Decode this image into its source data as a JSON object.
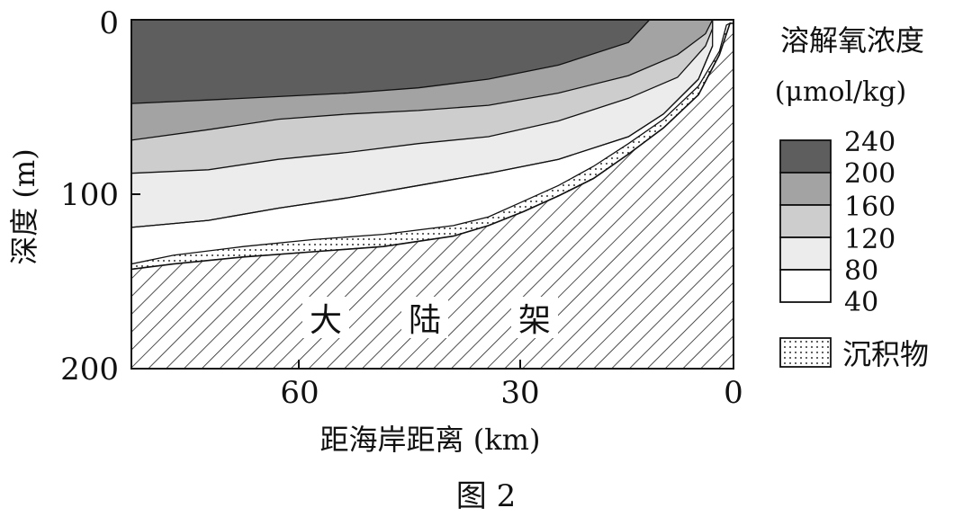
{
  "chart_data": {
    "type": "area",
    "title": "",
    "figure_label": "图 2",
    "xlabel": "距海岸距离 (km)",
    "ylabel": "深度 (m)",
    "xlim": [
      86,
      0
    ],
    "ylim": [
      0,
      200
    ],
    "x_ticks": [
      "60",
      "30",
      "0"
    ],
    "x_tick_values": [
      60,
      30,
      0
    ],
    "y_ticks": [
      "0",
      "100",
      "200"
    ],
    "y_tick_values": [
      0,
      100,
      200
    ],
    "shelf_label": [
      "大",
      "陆",
      "架"
    ],
    "legend": {
      "title": "溶解氧浓度",
      "unit": "(μmol/kg)",
      "values": [
        "240",
        "200",
        "160",
        "120",
        "80",
        "40"
      ],
      "sediment_label": "沉积物"
    },
    "colors": {
      "c240": "#5e5e5e",
      "c200": "#a3a3a3",
      "c160": "#cdcdcd",
      "c120": "#ececec",
      "c80": "#ffffff",
      "sediment": "#ffffff"
    },
    "isolines": [
      {
        "name": "200",
        "points": [
          [
            86,
            48
          ],
          [
            75,
            46
          ],
          [
            65,
            44
          ],
          [
            55,
            42
          ],
          [
            45,
            39
          ],
          [
            35,
            34
          ],
          [
            25,
            26
          ],
          [
            15,
            13
          ],
          [
            12,
            0
          ]
        ]
      },
      {
        "name": "160",
        "points": [
          [
            86,
            69
          ],
          [
            75,
            63
          ],
          [
            65,
            57
          ],
          [
            55,
            54
          ],
          [
            45,
            52
          ],
          [
            35,
            49
          ],
          [
            25,
            42
          ],
          [
            15,
            32
          ],
          [
            8,
            20
          ],
          [
            4,
            8
          ],
          [
            3,
            0
          ]
        ]
      },
      {
        "name": "120",
        "points": [
          [
            86,
            88
          ],
          [
            75,
            86
          ],
          [
            65,
            80
          ],
          [
            55,
            76
          ],
          [
            45,
            71
          ],
          [
            35,
            67
          ],
          [
            25,
            58
          ],
          [
            15,
            45
          ],
          [
            8,
            33
          ],
          [
            4,
            15
          ],
          [
            3,
            5
          ]
        ]
      },
      {
        "name": "80",
        "points": [
          [
            86,
            119
          ],
          [
            75,
            115
          ],
          [
            65,
            108
          ],
          [
            55,
            102
          ],
          [
            45,
            95
          ],
          [
            35,
            88
          ],
          [
            25,
            80
          ],
          [
            15,
            67
          ],
          [
            10,
            54
          ],
          [
            5,
            34
          ],
          [
            3,
            15
          ]
        ]
      }
    ],
    "sediment_top": [
      [
        86,
        140
      ],
      [
        80,
        135
      ],
      [
        70,
        130
      ],
      [
        60,
        126
      ],
      [
        50,
        123
      ],
      [
        40,
        118
      ],
      [
        35,
        113
      ],
      [
        30,
        104
      ],
      [
        25,
        95
      ],
      [
        20,
        84
      ],
      [
        15,
        71
      ],
      [
        10,
        57
      ],
      [
        5,
        38
      ],
      [
        2,
        18
      ],
      [
        1,
        3
      ]
    ],
    "seabed": [
      [
        86,
        143
      ],
      [
        80,
        140
      ],
      [
        70,
        136
      ],
      [
        60,
        133
      ],
      [
        50,
        130
      ],
      [
        40,
        124
      ],
      [
        35,
        118
      ],
      [
        30,
        110
      ],
      [
        25,
        101
      ],
      [
        20,
        91
      ],
      [
        15,
        77
      ],
      [
        10,
        62
      ],
      [
        5,
        43
      ],
      [
        2,
        20
      ],
      [
        0.5,
        2
      ]
    ]
  }
}
